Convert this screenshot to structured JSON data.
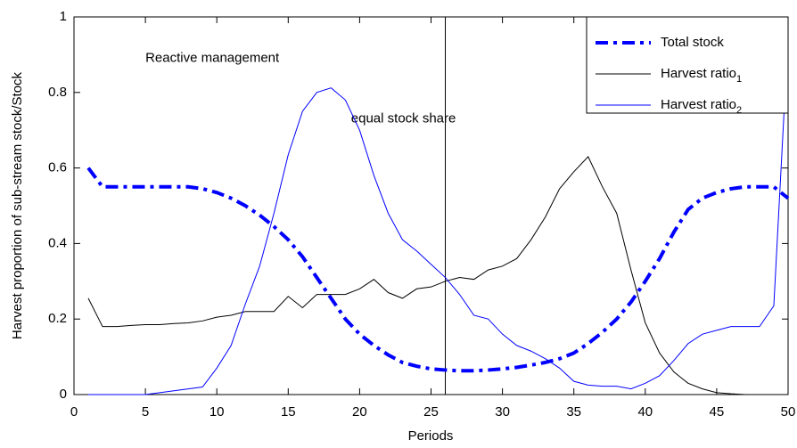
{
  "chart_data": {
    "type": "line",
    "x_label": "Periods",
    "y_label": "Harvest proportion of sub-stream stock/Stock",
    "annotations": [
      {
        "text": "Reactive management",
        "x": 5,
        "y": 0.89
      },
      {
        "text": "equal stock share",
        "x": 19.4,
        "y": 0.73
      }
    ],
    "vline": 26,
    "x": [
      1,
      2,
      3,
      4,
      5,
      6,
      7,
      8,
      9,
      10,
      11,
      12,
      13,
      14,
      15,
      16,
      17,
      18,
      19,
      20,
      21,
      22,
      23,
      24,
      25,
      26,
      27,
      28,
      29,
      30,
      31,
      32,
      33,
      34,
      35,
      36,
      37,
      38,
      39,
      40,
      41,
      42,
      43,
      44,
      45,
      46,
      47,
      48,
      49,
      50
    ],
    "xlim": [
      0,
      50
    ],
    "xticks": [
      0,
      5,
      10,
      15,
      20,
      25,
      30,
      35,
      40,
      45,
      50
    ],
    "ylim": [
      0,
      1
    ],
    "yticks": [
      0,
      0.2,
      0.4,
      0.6,
      0.8,
      1
    ],
    "legend": "upper right",
    "series": [
      {
        "name": "Total stock",
        "color": "#0000ff",
        "style": "dashdot",
        "width": 4,
        "values": [
          0.6,
          0.55,
          0.55,
          0.55,
          0.55,
          0.55,
          0.55,
          0.55,
          0.545,
          0.535,
          0.52,
          0.5,
          0.475,
          0.445,
          0.41,
          0.365,
          0.31,
          0.255,
          0.2,
          0.16,
          0.13,
          0.105,
          0.085,
          0.075,
          0.068,
          0.065,
          0.063,
          0.063,
          0.065,
          0.068,
          0.072,
          0.078,
          0.085,
          0.095,
          0.11,
          0.135,
          0.165,
          0.2,
          0.245,
          0.3,
          0.36,
          0.43,
          0.49,
          0.52,
          0.535,
          0.545,
          0.55,
          0.55,
          0.55,
          0.52
        ]
      },
      {
        "name": "Harvest ratio",
        "name_subscript": "1",
        "color": "#000000",
        "style": "solid",
        "width": 1,
        "values": [
          0.255,
          0.18,
          0.18,
          0.183,
          0.185,
          0.185,
          0.188,
          0.19,
          0.195,
          0.205,
          0.21,
          0.22,
          0.22,
          0.22,
          0.26,
          0.23,
          0.265,
          0.265,
          0.265,
          0.28,
          0.305,
          0.27,
          0.255,
          0.28,
          0.285,
          0.3,
          0.31,
          0.305,
          0.33,
          0.34,
          0.36,
          0.41,
          0.47,
          0.545,
          0.59,
          0.63,
          0.55,
          0.48,
          0.33,
          0.19,
          0.11,
          0.06,
          0.03,
          0.015,
          0.005,
          0.002,
          0,
          null,
          null,
          null
        ]
      },
      {
        "name": "Harvest ratio",
        "name_subscript": "2",
        "color": "#0000ff",
        "style": "solid",
        "width": 1,
        "values": [
          0,
          0,
          0,
          0,
          0,
          0.005,
          0.01,
          0.015,
          0.02,
          0.07,
          0.13,
          0.24,
          0.34,
          0.48,
          0.635,
          0.75,
          0.8,
          0.812,
          0.78,
          0.7,
          0.58,
          0.48,
          0.41,
          0.38,
          0.345,
          0.31,
          0.265,
          0.21,
          0.2,
          0.16,
          0.13,
          0.115,
          0.095,
          0.07,
          0.035,
          0.025,
          0.022,
          0.022,
          0.015,
          0.03,
          0.05,
          0.09,
          0.135,
          0.16,
          0.17,
          0.18,
          0.18,
          0.18,
          0.235,
          0.95
        ]
      }
    ]
  }
}
